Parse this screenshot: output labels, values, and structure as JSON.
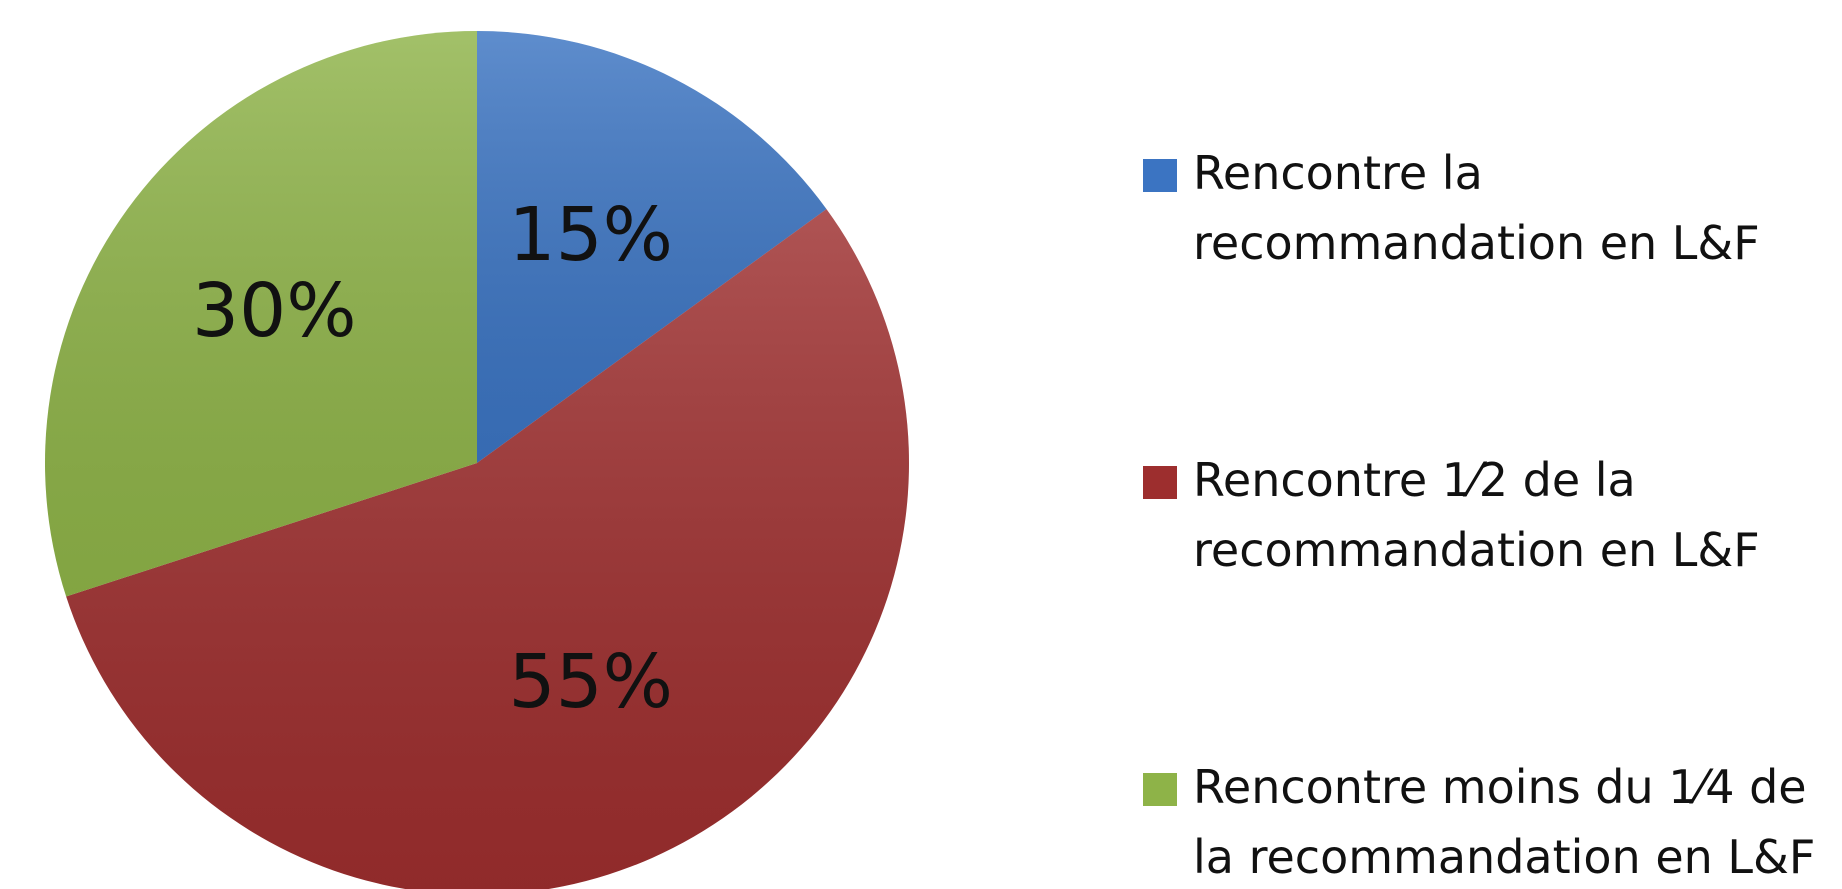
{
  "chart_data": {
    "type": "pie",
    "categories": [
      "Rencontre la recommandation en L&F",
      "Rencontre 1⁄2 de la recommandation en L&F",
      "Rencontre moins du 1⁄4 de la recommandation en L&F"
    ],
    "values": [
      15,
      55,
      30
    ],
    "value_labels": [
      "15%",
      "55%",
      "30%"
    ],
    "colors": [
      "#3b74c2",
      "#9d2e2e",
      "#8eb348"
    ]
  }
}
